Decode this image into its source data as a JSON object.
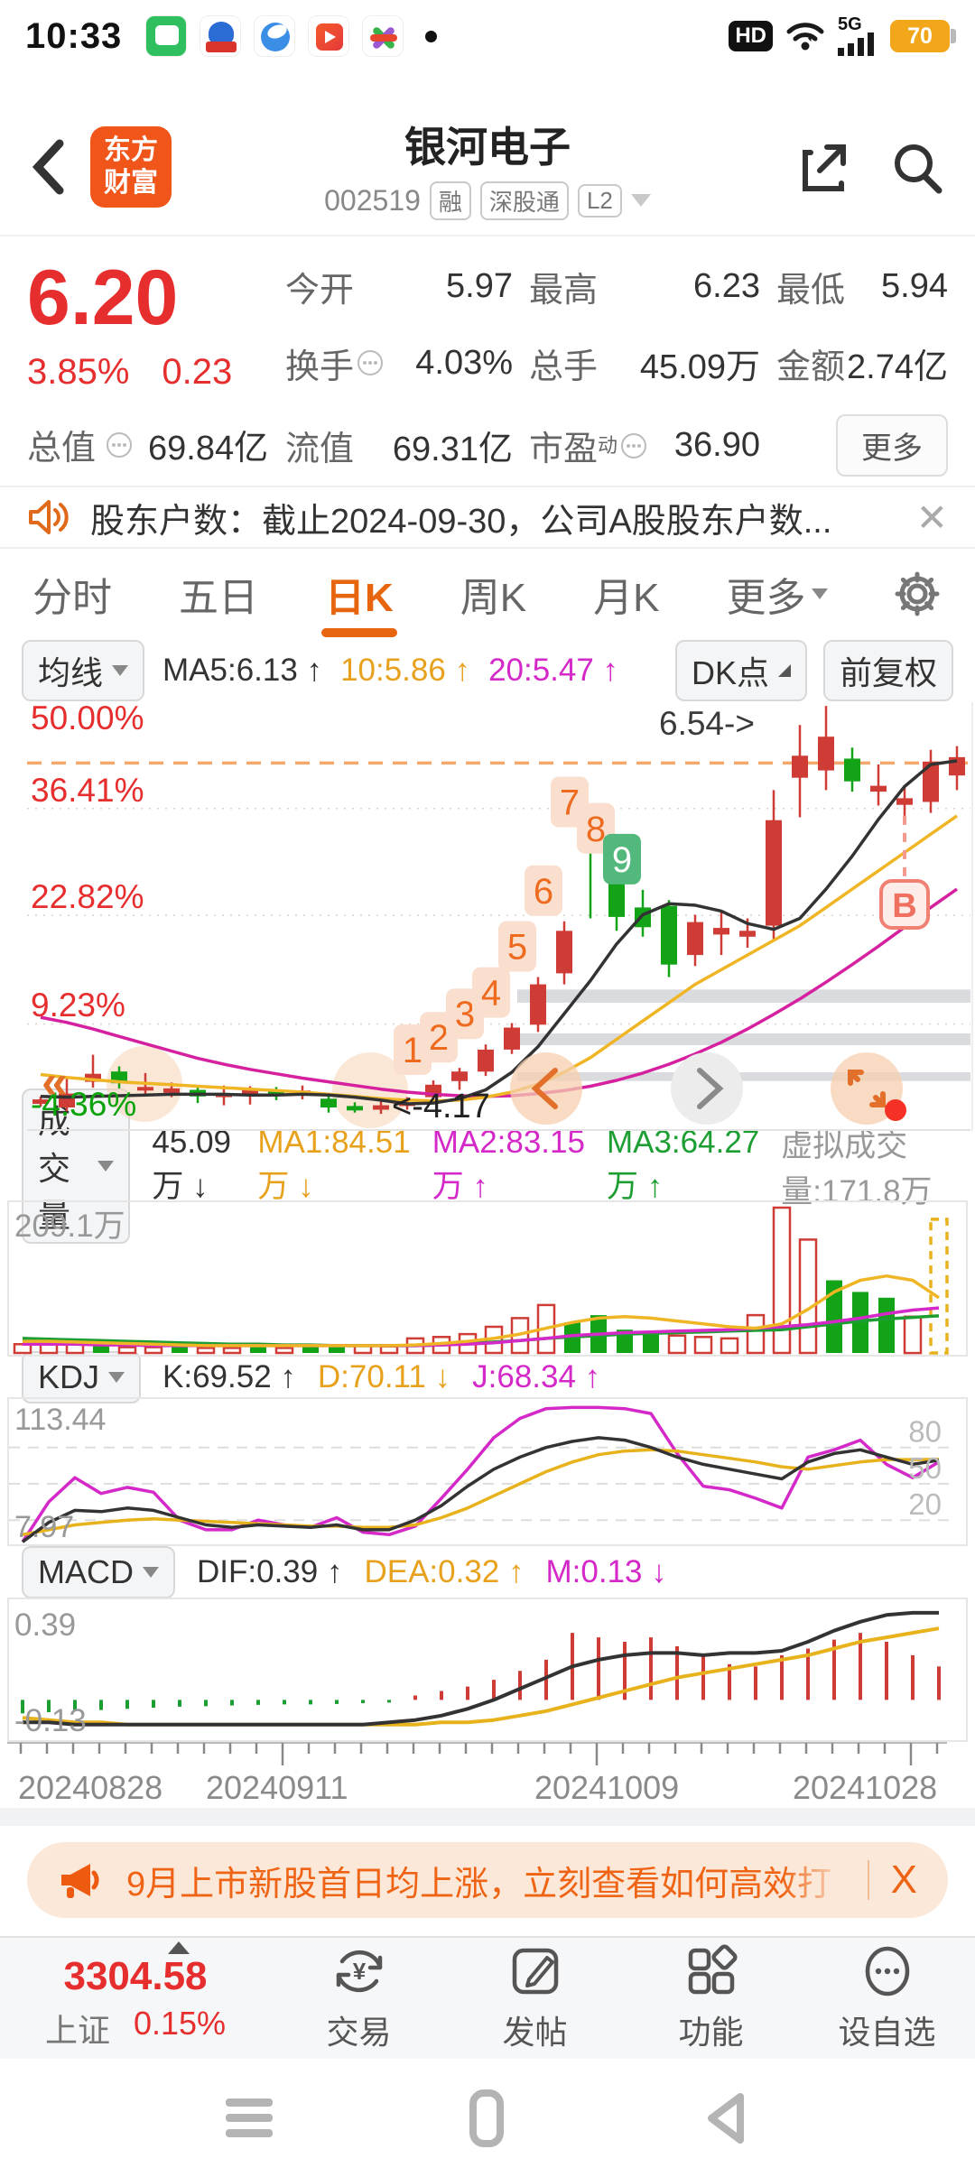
{
  "status_bar": {
    "time": "10:33",
    "hd": "HD",
    "network": "5G",
    "battery": "70"
  },
  "header": {
    "title": "银河电子",
    "code": "002519",
    "badges": [
      "融",
      "深股通",
      "L2"
    ],
    "logo_line1": "东方",
    "logo_line2": "财富"
  },
  "quote": {
    "price": "6.20",
    "change_pct": "3.85%",
    "change_abs": "0.23",
    "open_label": "今开",
    "open": "5.97",
    "high_label": "最高",
    "high": "6.23",
    "low_label": "最低",
    "low": "5.94",
    "turnover_label": "换手",
    "turnover": "4.03%",
    "volume_label": "总手",
    "volume": "45.09万",
    "amount_label": "金额",
    "amount": "2.74亿",
    "mktcap_label": "总值",
    "mktcap": "69.84亿",
    "float_label": "流值",
    "floatcap": "69.31亿",
    "pe_label": "市盈",
    "pe_sup": "动",
    "pe": "36.90",
    "more_label": "更多"
  },
  "news": {
    "text": "股东户数：截止2024-09-30，公司A股股东户数..."
  },
  "tabs": {
    "items": [
      "分时",
      "五日",
      "日K",
      "周K",
      "月K"
    ],
    "active": "日K",
    "more": "更多"
  },
  "ktoolbar": {
    "ma_btn": "均线",
    "ma5": "MA5:6.13 ↑",
    "ma10": "10:5.86 ↑",
    "ma20": "20:5.47 ↑",
    "dk_btn": "DK点",
    "fq_btn": "前复权"
  },
  "vol_header": {
    "btn": "成交量",
    "current": "45.09万 ↓",
    "ma1": "MA1:84.51万 ↓",
    "ma2": "MA2:83.15万 ↑",
    "ma3": "MA3:64.27万 ↑",
    "virtual": "虚拟成交量:171.8万"
  },
  "kdj_header": {
    "btn": "KDJ",
    "k": "K:69.52 ↑",
    "d": "D:70.11 ↓",
    "j": "J:68.34 ↑"
  },
  "macd_header": {
    "btn": "MACD",
    "dif": "DIF:0.39 ↑",
    "dea": "DEA:0.32 ↑",
    "m": "M:0.13 ↓"
  },
  "banner": {
    "text": "9月上市新股首日均上涨，立刻查看如何高效打",
    "close": "X"
  },
  "bottom_nav": {
    "index_value": "3304.58",
    "index_name": "上证",
    "index_pct": "0.15%",
    "items": [
      "交易",
      "发帖",
      "功能",
      "设自选"
    ]
  },
  "chart_data": {
    "type": "candlestick",
    "title": "银河电子 002519 日K 前复权",
    "y_axis_labels": [
      {
        "text": "50.00%",
        "v": 49.3,
        "color": "#e62e2e"
      },
      {
        "text": "36.41%",
        "v": 37.6,
        "color": "#e62e2e"
      },
      {
        "text": "22.82%",
        "v": 23.6,
        "color": "#e62e2e"
      },
      {
        "text": "9.23%",
        "v": 8.9,
        "color": "#e62e2e"
      },
      {
        "text": "-4.36%",
        "v": -4.0,
        "color": "#0aa30a"
      }
    ],
    "gridline_vs": [
      37.5,
      22.9,
      8.1
    ],
    "limit_line_v": 43.7,
    "bands": [
      [
        12.8,
        11.0
      ],
      [
        6.8,
        5.2
      ],
      [
        1.5,
        0.3
      ]
    ],
    "candles": [
      [
        -2.8,
        -2.2,
        -1.8,
        -3.2,
        "r"
      ],
      [
        -3.3,
        -1.4,
        0.6,
        -3.8,
        "r"
      ],
      [
        0.2,
        1.3,
        3.9,
        -0.6,
        "r"
      ],
      [
        1.6,
        0.0,
        2.3,
        -0.7,
        "g"
      ],
      [
        -0.8,
        -0.5,
        1.4,
        -1.6,
        "r"
      ],
      [
        -1.3,
        -0.7,
        0.1,
        -1.9,
        "r"
      ],
      [
        -0.9,
        -1.8,
        -0.4,
        -2.7,
        "g"
      ],
      [
        -1.7,
        -1.4,
        -0.3,
        -3.0,
        "r"
      ],
      [
        -1.5,
        -0.9,
        -0.4,
        -2.9,
        "r"
      ],
      [
        -0.9,
        -1.7,
        -0.5,
        -2.3,
        "g"
      ],
      [
        -1.6,
        -1.0,
        -0.3,
        -2.2,
        "r"
      ],
      [
        -2.1,
        -3.3,
        -1.6,
        -4.0,
        "g"
      ],
      [
        -3.1,
        -3.7,
        -2.6,
        -4.0,
        "g"
      ],
      [
        -3.6,
        -3.0,
        -2.3,
        -4.17,
        "r"
      ],
      [
        -3.1,
        -2.6,
        -1.9,
        -3.6,
        "r"
      ],
      [
        -1.9,
        -0.2,
        0.4,
        -2.5,
        "r"
      ],
      [
        0.3,
        1.6,
        2.1,
        -0.9,
        "r"
      ],
      [
        1.6,
        4.6,
        5.3,
        1.0,
        "r"
      ],
      [
        4.6,
        7.6,
        8.2,
        4.0,
        "r"
      ],
      [
        8.0,
        13.5,
        14.5,
        7.0,
        "r"
      ],
      [
        15.0,
        20.8,
        22.1,
        13.5,
        "r"
      ],
      [
        33.8,
        33.0,
        34.2,
        22.5,
        "g"
      ],
      [
        29.4,
        22.7,
        30.6,
        20.8,
        "g"
      ],
      [
        24.0,
        21.3,
        26.4,
        20.0,
        "g"
      ],
      [
        24.2,
        16.2,
        25.0,
        14.5,
        "g"
      ],
      [
        17.5,
        22.0,
        23.0,
        16.0,
        "r"
      ],
      [
        20.3,
        21.2,
        23.5,
        17.5,
        "r"
      ],
      [
        20.0,
        20.8,
        22.5,
        18.5,
        "r"
      ],
      [
        21.5,
        35.9,
        40.0,
        19.5,
        "r"
      ],
      [
        41.7,
        44.7,
        48.9,
        36.3,
        "r"
      ],
      [
        42.7,
        47.3,
        51.5,
        40.0,
        "r"
      ],
      [
        44.3,
        41.2,
        45.8,
        39.8,
        "g"
      ],
      [
        39.8,
        40.6,
        43.5,
        37.9,
        "r"
      ],
      [
        38.0,
        38.9,
        40.5,
        36.5,
        "r"
      ],
      [
        38.4,
        43.9,
        45.5,
        36.9,
        "r"
      ],
      [
        42.0,
        44.5,
        46.0,
        40.0,
        "r"
      ]
    ],
    "badges": [
      {
        "i": 15,
        "n": "1"
      },
      {
        "i": 16,
        "n": "2"
      },
      {
        "i": 17,
        "n": "3"
      },
      {
        "i": 18,
        "n": "4"
      },
      {
        "i": 19,
        "n": "5"
      },
      {
        "i": 20,
        "n": "6"
      },
      {
        "i": 21,
        "n": "7"
      },
      {
        "i": 22,
        "n": "8"
      },
      {
        "i": 23,
        "n": "9"
      }
    ],
    "ma5": [
      -1.8,
      -1.9,
      -1.8,
      -1.7,
      -1.6,
      -1.5,
      -1.5,
      -1.5,
      -1.6,
      -1.6,
      -1.5,
      -1.6,
      -1.9,
      -2.3,
      -2.8,
      -2.7,
      -2.1,
      -0.9,
      1.5,
      5,
      9.5,
      14,
      19,
      23,
      24.5,
      24.3,
      23.5,
      21.8,
      21,
      22.5,
      26.5,
      31,
      36,
      40.5,
      43.5,
      44
    ],
    "ma10": [
      1.2,
      0.8,
      0.5,
      0.2,
      0,
      -0.2,
      -0.4,
      -0.6,
      -0.8,
      -1,
      -1.2,
      -1.5,
      -1.8,
      -2.1,
      -2.3,
      -2.4,
      -2.3,
      -1.9,
      -1.2,
      -0.1,
      1.5,
      3.5,
      6,
      8.5,
      11,
      13.5,
      15.5,
      17.5,
      19.5,
      21.5,
      24,
      26.5,
      29,
      31.5,
      34,
      36.5
    ],
    "ma20": [
      9,
      8.3,
      7.4,
      6.4,
      5.4,
      4.4,
      3.4,
      2.6,
      1.9,
      1.3,
      0.7,
      0.2,
      -0.3,
      -0.8,
      -1.2,
      -1.5,
      -1.7,
      -1.8,
      -1.7,
      -1.4,
      -1,
      -0.4,
      0.4,
      1.4,
      2.6,
      4,
      5.6,
      7.4,
      9.4,
      11.5,
      13.8,
      16.2,
      18.7,
      21.3,
      24,
      26.5
    ],
    "annotations": {
      "high": "6.54->",
      "low": "<-4.17",
      "buy_marker": "B",
      "pan_left": "«"
    },
    "volume": {
      "axis_label": "209.1万",
      "bars": [
        [
          6,
          "r"
        ],
        [
          8,
          "r"
        ],
        [
          7,
          "r"
        ],
        [
          6,
          "g"
        ],
        [
          4,
          "r"
        ],
        [
          4,
          "r"
        ],
        [
          4,
          "g"
        ],
        [
          3.5,
          "r"
        ],
        [
          3.5,
          "r"
        ],
        [
          4,
          "g"
        ],
        [
          3.5,
          "r"
        ],
        [
          4.5,
          "g"
        ],
        [
          4,
          "g"
        ],
        [
          5,
          "r"
        ],
        [
          4.5,
          "r"
        ],
        [
          10,
          "r"
        ],
        [
          11,
          "r"
        ],
        [
          13,
          "r"
        ],
        [
          18,
          "r"
        ],
        [
          24,
          "r"
        ],
        [
          33,
          "r"
        ],
        [
          21,
          "g"
        ],
        [
          26,
          "g"
        ],
        [
          16,
          "g"
        ],
        [
          14,
          "g"
        ],
        [
          12,
          "r"
        ],
        [
          11,
          "r"
        ],
        [
          10,
          "r"
        ],
        [
          26,
          "r"
        ],
        [
          100,
          "r"
        ],
        [
          78,
          "r"
        ],
        [
          50,
          "g"
        ],
        [
          42,
          "g"
        ],
        [
          38,
          "g"
        ],
        [
          25,
          "r"
        ],
        [
          92,
          "y"
        ]
      ],
      "ma1": [
        8,
        8,
        7.5,
        7,
        6.5,
        6,
        5.5,
        5,
        5,
        5,
        5,
        5,
        5,
        5,
        5,
        5.5,
        6.5,
        8,
        10,
        13,
        17,
        21,
        24,
        25,
        24,
        22,
        20,
        18,
        17,
        20,
        30,
        42,
        50,
        53,
        50,
        38
      ],
      "ma2": [
        6,
        6,
        6,
        5.5,
        5.5,
        5,
        5,
        5,
        5,
        5,
        5,
        5,
        5,
        5,
        5,
        5,
        5.5,
        6,
        7,
        8.5,
        10,
        12,
        13,
        14,
        14.5,
        15,
        15.5,
        16,
        17,
        18,
        19.5,
        21.5,
        24,
        27,
        29.5,
        31
      ],
      "ma3": [
        10,
        9.5,
        9,
        8.5,
        8,
        7.5,
        7,
        6.5,
        6,
        6,
        5.5,
        5.5,
        5,
        5,
        5,
        5,
        5.5,
        6.5,
        7.5,
        8.5,
        10,
        11,
        12,
        13,
        13.5,
        14,
        14.5,
        15,
        15.5,
        16,
        18,
        20,
        22,
        23.5,
        24.5,
        25.5
      ]
    },
    "kdj": {
      "top_label": "113.44",
      "bottom_label": "7.97",
      "right_labels": [
        "80",
        "50",
        "20"
      ],
      "j": [
        2,
        35,
        55,
        42,
        47,
        43,
        20,
        12,
        12,
        20,
        16,
        14,
        22,
        10,
        8,
        15,
        38,
        62,
        88,
        104,
        112,
        113,
        113,
        112,
        108,
        75,
        48,
        45,
        38,
        30,
        72,
        78,
        86,
        66,
        55,
        68
      ],
      "k": [
        2,
        18,
        28,
        27,
        30,
        28,
        22,
        16,
        14,
        16,
        15,
        14,
        16,
        12,
        12,
        20,
        32,
        48,
        62,
        72,
        80,
        85,
        88,
        86,
        80,
        72,
        66,
        62,
        58,
        54,
        68,
        75,
        78,
        72,
        66,
        69.5
      ],
      "d": [
        8,
        12,
        16,
        18,
        20,
        21,
        20,
        19,
        18,
        17,
        16,
        15,
        15,
        14,
        14,
        16,
        22,
        30,
        40,
        50,
        60,
        68,
        74,
        77,
        78,
        77,
        74,
        71,
        68,
        64,
        62,
        65,
        68,
        70,
        70,
        70.1
      ]
    },
    "macd": {
      "top_label": "0.39",
      "bottom_label": "-0.13",
      "hist": [
        -0.06,
        -0.055,
        -0.05,
        -0.045,
        -0.04,
        -0.035,
        -0.03,
        -0.028,
        -0.025,
        -0.022,
        -0.02,
        -0.02,
        -0.018,
        -0.015,
        -0.012,
        0.02,
        0.04,
        0.06,
        0.09,
        0.13,
        0.18,
        0.3,
        0.28,
        0.26,
        0.28,
        0.24,
        0.2,
        0.16,
        0.15,
        0.2,
        0.23,
        0.27,
        0.3,
        0.26,
        0.2,
        0.15
      ],
      "dif": [
        -0.1,
        -0.1,
        -0.11,
        -0.11,
        -0.11,
        -0.11,
        -0.11,
        -0.11,
        -0.11,
        -0.11,
        -0.11,
        -0.11,
        -0.11,
        -0.11,
        -0.1,
        -0.09,
        -0.07,
        -0.04,
        0.0,
        0.05,
        0.1,
        0.15,
        0.18,
        0.2,
        0.21,
        0.21,
        0.2,
        0.21,
        0.21,
        0.22,
        0.26,
        0.31,
        0.35,
        0.38,
        0.39,
        0.39
      ],
      "dea": [
        -0.08,
        -0.09,
        -0.1,
        -0.1,
        -0.11,
        -0.11,
        -0.11,
        -0.11,
        -0.11,
        -0.11,
        -0.11,
        -0.11,
        -0.11,
        -0.11,
        -0.11,
        -0.11,
        -0.1,
        -0.1,
        -0.09,
        -0.07,
        -0.05,
        -0.02,
        0.01,
        0.04,
        0.07,
        0.1,
        0.12,
        0.14,
        0.16,
        0.18,
        0.2,
        0.23,
        0.26,
        0.28,
        0.3,
        0.32
      ]
    },
    "dates": [
      "20240828",
      "20240911",
      "20241009",
      "20241028"
    ],
    "colors": {
      "up": "#cf3b35",
      "down": "#12a317",
      "virtual": "#e8b21c",
      "ma5": "#333333",
      "ma10": "#efb524",
      "ma20": "#d5219f",
      "k": "#333333",
      "d": "#e8b21c",
      "j": "#d428c8",
      "vol_ma1": "#efb524",
      "vol_ma2": "#d428c8",
      "vol_ma3": "#1d9e33",
      "badge_bg": "#fadfce",
      "badge_fg": "#ed6a1f",
      "badge9_bg": "#53b87b",
      "band": "#d9dbde",
      "limit_line": "#f5a86a",
      "accent": "#e8650f"
    }
  }
}
